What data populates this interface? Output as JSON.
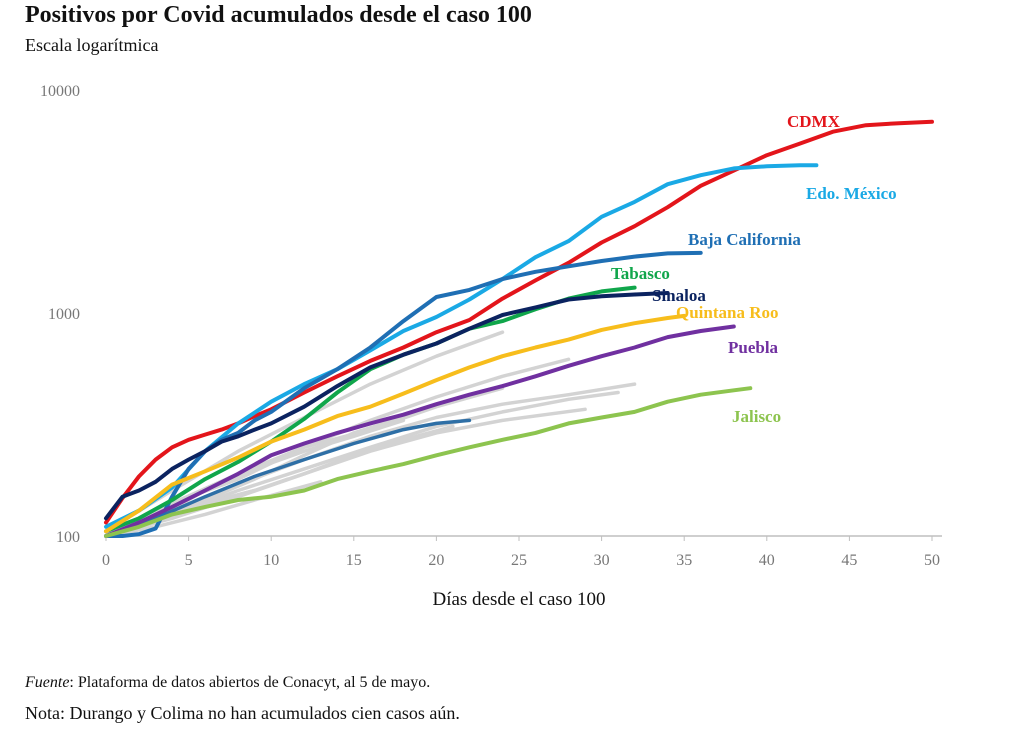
{
  "chart_data": {
    "type": "line",
    "title": "Positivos por Covid acumulados desde el caso 100",
    "subtitle": "Escala logarítmica",
    "xlabel": "Días desde el caso 100",
    "ylabel": "",
    "yscale": "log",
    "xlim": [
      0,
      50
    ],
    "ylim": [
      100,
      10000
    ],
    "xticks": [
      "0",
      "5",
      "10",
      "15",
      "20",
      "25",
      "30",
      "35",
      "40",
      "45",
      "50"
    ],
    "yticks": [
      "100",
      "1000",
      "10000"
    ],
    "grid": false,
    "series": [
      {
        "name": "CDMX",
        "color": "#e3151b",
        "label": true,
        "x": [
          0,
          1,
          2,
          3,
          4,
          5,
          6,
          7,
          8,
          9,
          10,
          12,
          14,
          16,
          18,
          20,
          22,
          24,
          26,
          28,
          30,
          32,
          34,
          36,
          38,
          40,
          42,
          44,
          46,
          48,
          50
        ],
        "y": [
          115,
          148,
          185,
          220,
          250,
          270,
          285,
          300,
          320,
          345,
          370,
          440,
          520,
          610,
          700,
          820,
          930,
          1160,
          1400,
          1680,
          2070,
          2450,
          2980,
          3720,
          4350,
          5100,
          5750,
          6500,
          6950,
          7100,
          7200
        ]
      },
      {
        "name": "Edo. México",
        "color": "#1aa9e5",
        "label": true,
        "x": [
          0,
          2,
          4,
          6,
          8,
          10,
          12,
          14,
          16,
          18,
          20,
          22,
          24,
          26,
          28,
          30,
          32,
          34,
          36,
          38,
          40,
          42,
          43
        ],
        "y": [
          110,
          130,
          165,
          240,
          320,
          400,
          480,
          560,
          680,
          830,
          960,
          1150,
          1420,
          1780,
          2100,
          2700,
          3150,
          3780,
          4150,
          4450,
          4550,
          4600,
          4600
        ]
      },
      {
        "name": "Baja California",
        "color": "#1f6fb4",
        "label": true,
        "x": [
          0,
          1,
          2,
          3,
          4,
          5,
          6,
          7,
          8,
          9,
          10,
          12,
          14,
          16,
          18,
          20,
          22,
          24,
          26,
          28,
          30,
          32,
          34,
          36
        ],
        "y": [
          100,
          100,
          102,
          108,
          150,
          200,
          240,
          270,
          290,
          330,
          360,
          460,
          560,
          700,
          920,
          1180,
          1270,
          1420,
          1530,
          1620,
          1710,
          1790,
          1850,
          1860
        ]
      },
      {
        "name": "Tabasco",
        "color": "#10a64b",
        "label": true,
        "x": [
          0,
          2,
          4,
          6,
          8,
          10,
          12,
          14,
          16,
          18,
          20,
          22,
          24,
          26,
          28,
          30,
          32
        ],
        "y": [
          105,
          120,
          145,
          180,
          215,
          265,
          335,
          440,
          560,
          650,
          730,
          850,
          920,
          1040,
          1160,
          1250,
          1300
        ]
      },
      {
        "name": "Sinaloa",
        "color": "#0b2360",
        "label": true,
        "x": [
          0,
          1,
          2,
          3,
          4,
          5,
          6,
          7,
          8,
          9,
          10,
          12,
          14,
          16,
          18,
          20,
          22,
          24,
          26,
          28,
          30,
          32,
          34
        ],
        "y": [
          120,
          150,
          160,
          175,
          200,
          220,
          240,
          265,
          280,
          300,
          320,
          380,
          470,
          570,
          650,
          730,
          850,
          980,
          1060,
          1150,
          1190,
          1210,
          1230
        ]
      },
      {
        "name": "Quintana Roo",
        "color": "#f7bd1c",
        "label": true,
        "x": [
          0,
          2,
          4,
          6,
          8,
          10,
          12,
          14,
          16,
          18,
          20,
          22,
          24,
          26,
          28,
          30,
          32,
          34,
          35
        ],
        "y": [
          105,
          130,
          170,
          195,
          225,
          265,
          300,
          345,
          380,
          435,
          500,
          570,
          640,
          700,
          760,
          840,
          900,
          950,
          970
        ]
      },
      {
        "name": "Puebla",
        "color": "#7030a0",
        "label": true,
        "x": [
          0,
          2,
          4,
          6,
          8,
          10,
          12,
          14,
          16,
          18,
          20,
          22,
          24,
          26,
          28,
          30,
          32,
          34,
          36,
          38
        ],
        "y": [
          100,
          115,
          135,
          160,
          190,
          230,
          260,
          290,
          320,
          350,
          390,
          430,
          470,
          520,
          580,
          640,
          700,
          780,
          830,
          870
        ]
      },
      {
        "name": "Jalisco",
        "color": "#8dc44f",
        "label": true,
        "x": [
          0,
          2,
          4,
          6,
          8,
          10,
          12,
          14,
          16,
          18,
          20,
          22,
          24,
          26,
          28,
          30,
          32,
          34,
          36,
          38,
          39
        ],
        "y": [
          100,
          110,
          125,
          135,
          145,
          150,
          160,
          180,
          195,
          210,
          230,
          250,
          270,
          290,
          320,
          340,
          360,
          400,
          430,
          450,
          460
        ]
      },
      {
        "name": "",
        "color": "#d3d3d3",
        "label": false,
        "x": [
          0,
          4,
          8,
          12,
          16,
          20,
          24
        ],
        "y": [
          105,
          160,
          240,
          340,
          480,
          640,
          820
        ]
      },
      {
        "name": "",
        "color": "#d3d3d3",
        "label": false,
        "x": [
          0,
          4,
          8,
          12,
          16,
          20,
          24,
          28
        ],
        "y": [
          100,
          140,
          190,
          250,
          330,
          420,
          520,
          620
        ]
      },
      {
        "name": "",
        "color": "#d3d3d3",
        "label": false,
        "x": [
          0,
          4,
          8,
          12,
          16,
          20,
          24,
          28,
          32
        ],
        "y": [
          100,
          130,
          170,
          220,
          280,
          340,
          390,
          430,
          480
        ]
      },
      {
        "name": "",
        "color": "#d3d3d3",
        "label": false,
        "x": [
          0,
          4,
          8,
          12,
          16,
          20,
          24,
          28,
          31
        ],
        "y": [
          100,
          125,
          160,
          200,
          250,
          310,
          360,
          410,
          440
        ]
      },
      {
        "name": "",
        "color": "#d3d3d3",
        "label": false,
        "x": [
          0,
          4,
          8,
          12,
          16,
          20,
          24,
          29
        ],
        "y": [
          100,
          120,
          150,
          190,
          240,
          290,
          330,
          370
        ]
      },
      {
        "name": "",
        "color": "#d3d3d3",
        "label": false,
        "x": [
          0,
          4,
          8,
          12,
          16,
          20,
          24
        ],
        "y": [
          100,
          140,
          180,
          250,
          300,
          380,
          460
        ]
      },
      {
        "name": "",
        "color": "#d3d3d3",
        "label": false,
        "x": [
          0,
          3,
          6,
          9,
          12,
          15,
          18,
          21
        ],
        "y": [
          100,
          120,
          140,
          160,
          190,
          230,
          270,
          310
        ]
      },
      {
        "name": "",
        "color": "#d3d3d3",
        "label": false,
        "x": [
          0,
          3,
          6,
          9,
          12,
          15,
          18
        ],
        "y": [
          100,
          115,
          145,
          180,
          230,
          290,
          340
        ]
      },
      {
        "name": "",
        "color": "#d3d3d3",
        "label": false,
        "x": [
          0,
          3,
          6,
          9,
          11
        ],
        "y": [
          100,
          118,
          140,
          160,
          180
        ]
      },
      {
        "name": "",
        "color": "#d3d3d3",
        "label": false,
        "x": [
          0,
          3,
          6,
          9,
          13
        ],
        "y": [
          100,
          110,
          125,
          145,
          175
        ]
      },
      {
        "name": "",
        "color": "#d3d3d3",
        "label": false,
        "x": [
          0,
          3,
          6,
          9,
          12,
          15,
          18
        ],
        "y": [
          100,
          120,
          160,
          200,
          240,
          280,
          330
        ]
      },
      {
        "name": "",
        "color": "#2e6fa6",
        "label": false,
        "x": [
          0,
          3,
          6,
          9,
          12,
          15,
          18,
          20,
          22
        ],
        "y": [
          100,
          120,
          150,
          185,
          220,
          260,
          300,
          320,
          330
        ]
      }
    ]
  },
  "labels": {
    "CDMX": "CDMX",
    "Edo. México": "Edo. México",
    "Baja California": "Baja California",
    "Tabasco": "Tabasco",
    "Sinaloa": "Sinaloa",
    "Quintana Roo": "Quintana Roo",
    "Puebla": "Puebla",
    "Jalisco": "Jalisco"
  },
  "footer": {
    "source_label": "Fuente",
    "source_text": ": Plataforma de datos abiertos de Conacyt, al 5 de mayo.",
    "note": "Nota: Durango y Colima no han acumulados cien casos aún."
  }
}
